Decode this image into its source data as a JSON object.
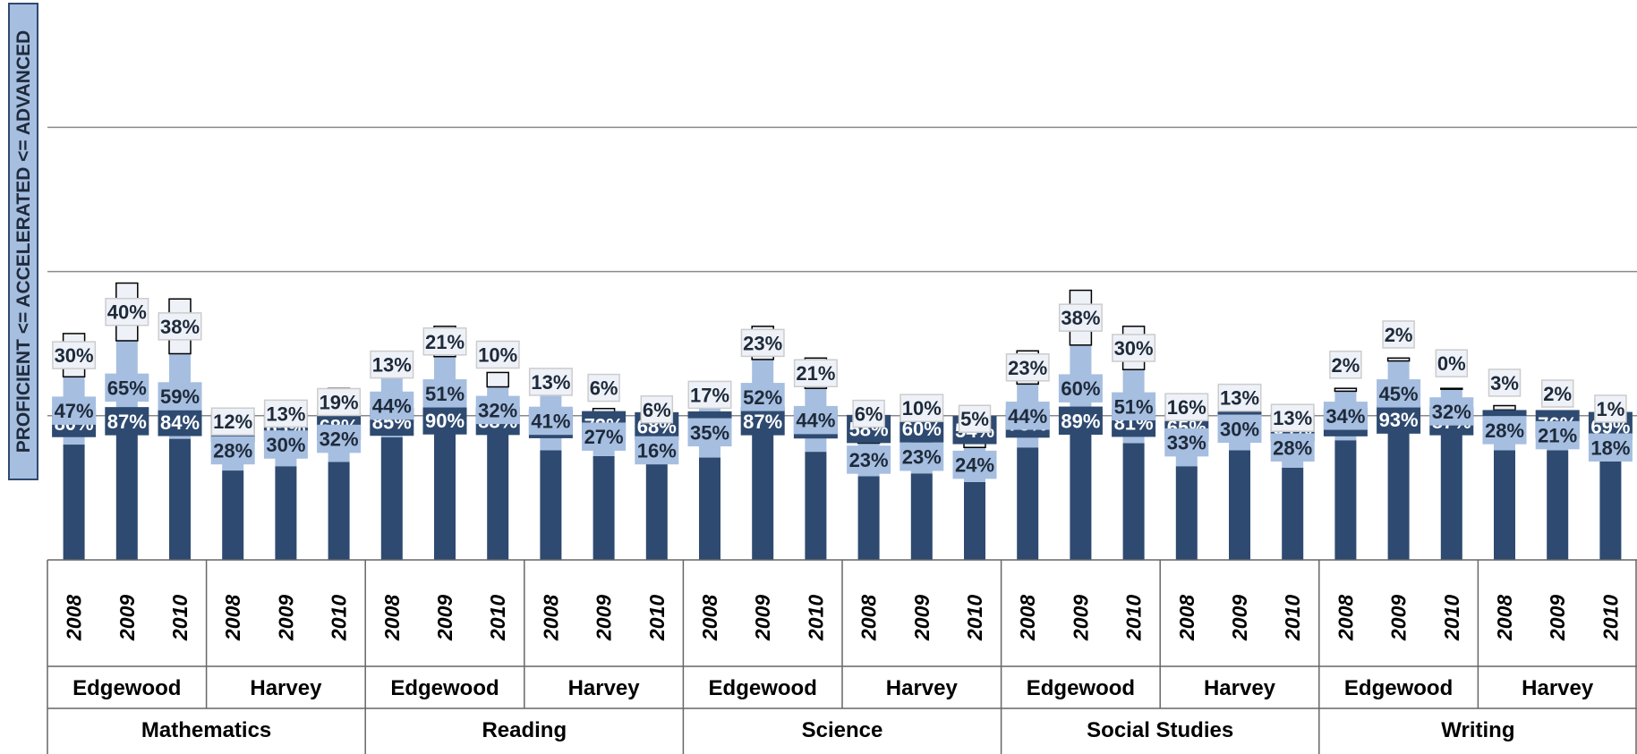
{
  "chart_data": {
    "type": "bar",
    "stacked": true,
    "ylabel": "PROFICIENT <= ACCELERATED <= ADVANCED",
    "grid": true,
    "colors": {
      "proficient": "#2e4a70",
      "accelerated": "#a6bee0",
      "advanced": "#eef2f8",
      "gridline": "#8a8a8a",
      "axis_border": "#666666"
    },
    "subjects": [
      {
        "name": "Mathematics",
        "schools": [
          {
            "name": "Edgewood",
            "years": [
              {
                "year": "2008",
                "proficient": 80,
                "accelerated": 47,
                "advanced": 30
              },
              {
                "year": "2009",
                "proficient": 87,
                "accelerated": 65,
                "advanced": 40
              },
              {
                "year": "2010",
                "proficient": 84,
                "accelerated": 59,
                "advanced": 38
              }
            ]
          },
          {
            "name": "Harvey",
            "years": [
              {
                "year": "2008",
                "proficient": 62,
                "accelerated": 28,
                "advanced": 12
              },
              {
                "year": "2009",
                "proficient": 65,
                "accelerated": 30,
                "advanced": 13
              },
              {
                "year": "2010",
                "proficient": 68,
                "accelerated": 32,
                "advanced": 19
              }
            ]
          }
        ]
      },
      {
        "name": "Reading",
        "schools": [
          {
            "name": "Edgewood",
            "years": [
              {
                "year": "2008",
                "proficient": 85,
                "accelerated": 44,
                "advanced": 13
              },
              {
                "year": "2009",
                "proficient": 90,
                "accelerated": 51,
                "advanced": 21
              },
              {
                "year": "2010",
                "proficient": 88,
                "accelerated": 32,
                "advanced": 10
              }
            ]
          },
          {
            "name": "Harvey",
            "years": [
              {
                "year": "2008",
                "proficient": 76,
                "accelerated": 41,
                "advanced": 13
              },
              {
                "year": "2009",
                "proficient": 72,
                "accelerated": 27,
                "advanced": 6
              },
              {
                "year": "2010",
                "proficient": 68,
                "accelerated": 16,
                "advanced": 6
              }
            ]
          }
        ]
      },
      {
        "name": "Science",
        "schools": [
          {
            "name": "Edgewood",
            "years": [
              {
                "year": "2008",
                "proficient": 71,
                "accelerated": 35,
                "advanced": 17
              },
              {
                "year": "2009",
                "proficient": 87,
                "accelerated": 52,
                "advanced": 23
              },
              {
                "year": "2010",
                "proficient": 75,
                "accelerated": 44,
                "advanced": 21
              }
            ]
          },
          {
            "name": "Harvey",
            "years": [
              {
                "year": "2008",
                "proficient": 58,
                "accelerated": 23,
                "advanced": 6
              },
              {
                "year": "2009",
                "proficient": 60,
                "accelerated": 23,
                "advanced": 10
              },
              {
                "year": "2010",
                "proficient": 54,
                "accelerated": 24,
                "advanced": 5
              }
            ]
          }
        ]
      },
      {
        "name": "Social Studies",
        "schools": [
          {
            "name": "Edgewood",
            "years": [
              {
                "year": "2008",
                "proficient": 78,
                "accelerated": 44,
                "advanced": 23
              },
              {
                "year": "2009",
                "proficient": 89,
                "accelerated": 60,
                "advanced": 38
              },
              {
                "year": "2010",
                "proficient": 81,
                "accelerated": 51,
                "advanced": 30
              }
            ]
          },
          {
            "name": "Harvey",
            "years": [
              {
                "year": "2008",
                "proficient": 65,
                "accelerated": 33,
                "advanced": 16
              },
              {
                "year": "2009",
                "proficient": 76,
                "accelerated": 30,
                "advanced": 13
              },
              {
                "year": "2010",
                "proficient": 64,
                "accelerated": 28,
                "advanced": 13
              }
            ]
          }
        ]
      },
      {
        "name": "Writing",
        "schools": [
          {
            "name": "Edgewood",
            "years": [
              {
                "year": "2008",
                "proficient": 83,
                "accelerated": 34,
                "advanced": 2
              },
              {
                "year": "2009",
                "proficient": 93,
                "accelerated": 45,
                "advanced": 2
              },
              {
                "year": "2010",
                "proficient": 87,
                "accelerated": 32,
                "advanced": 0
              }
            ]
          },
          {
            "name": "Harvey",
            "years": [
              {
                "year": "2008",
                "proficient": 76,
                "accelerated": 28,
                "advanced": 3
              },
              {
                "year": "2009",
                "proficient": 76,
                "accelerated": 21,
                "advanced": 2
              },
              {
                "year": "2010",
                "proficient": 69,
                "accelerated": 18,
                "advanced": 1
              }
            ]
          }
        ]
      }
    ]
  }
}
